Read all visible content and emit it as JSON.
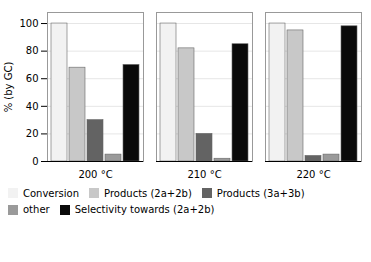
{
  "chart_data": {
    "type": "bar",
    "categories": [
      "200 °C",
      "210 °C",
      "220 °C"
    ],
    "series": [
      {
        "name": "Conversion",
        "color": "#f2f2f2",
        "values": [
          100,
          100,
          100
        ]
      },
      {
        "name": "Products (2a+2b)",
        "color": "#c8c8c8",
        "values": [
          68,
          82,
          95
        ]
      },
      {
        "name": "Products (3a+3b)",
        "color": "#636363",
        "values": [
          30,
          20,
          4
        ]
      },
      {
        "name": "other",
        "color": "#9a9a9a",
        "values": [
          5,
          2,
          5
        ]
      },
      {
        "name": "Selectivity towards (2a+2b)",
        "color": "#0a0a0a",
        "values": [
          70,
          85,
          98
        ]
      }
    ],
    "ylabel": "% (by GC)",
    "ylim": [
      0,
      108
    ],
    "yticks": [
      0,
      20,
      40,
      60,
      80,
      100
    ],
    "grid": true,
    "legend": "bottom"
  }
}
